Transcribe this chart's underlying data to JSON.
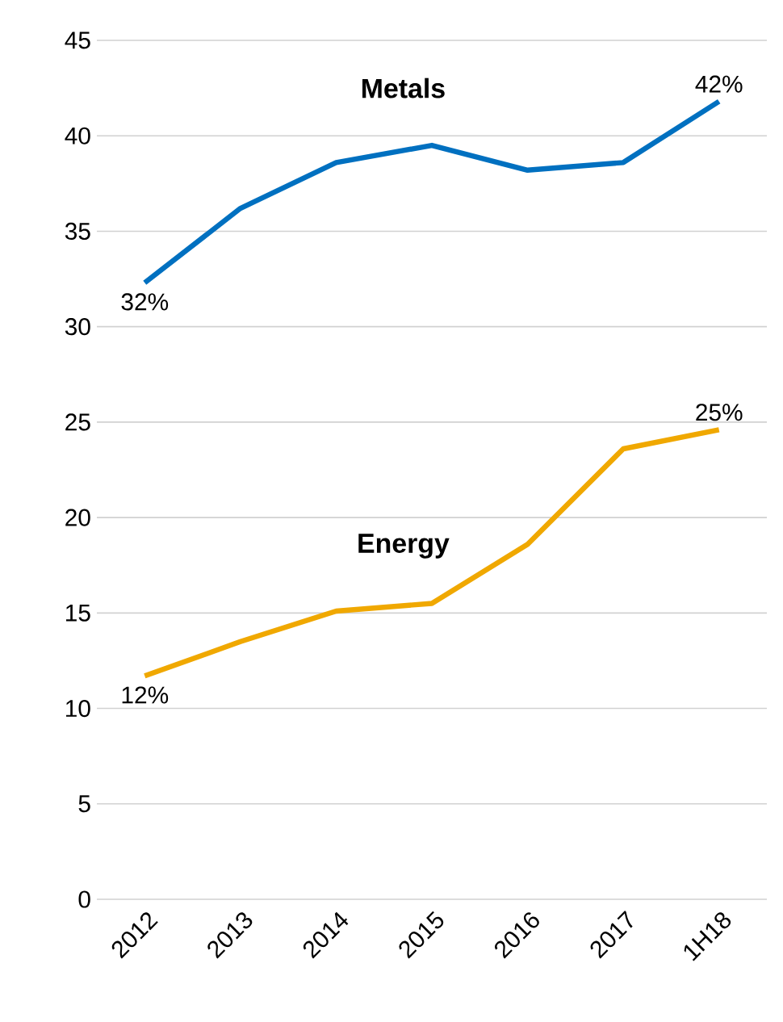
{
  "chart_data": {
    "type": "line",
    "categories": [
      "2012",
      "2013",
      "2014",
      "2015",
      "2016",
      "2017",
      "1H18"
    ],
    "ylim": [
      0,
      45
    ],
    "yticks": [
      0,
      5,
      10,
      15,
      20,
      25,
      30,
      35,
      40,
      45
    ],
    "grid": "y",
    "marker": "none",
    "series": [
      {
        "name": "Metals",
        "color": "#0070c0",
        "values": [
          32.3,
          36.2,
          38.6,
          39.5,
          38.2,
          38.6,
          41.8
        ],
        "value_labels": [
          "32%",
          null,
          null,
          null,
          null,
          null,
          "42%"
        ]
      },
      {
        "name": "Energy",
        "color": "#f0a800",
        "values": [
          11.7,
          13.5,
          15.1,
          15.5,
          18.6,
          23.6,
          24.6
        ],
        "value_labels": [
          "12%",
          null,
          null,
          null,
          null,
          null,
          "25%"
        ]
      }
    ]
  }
}
